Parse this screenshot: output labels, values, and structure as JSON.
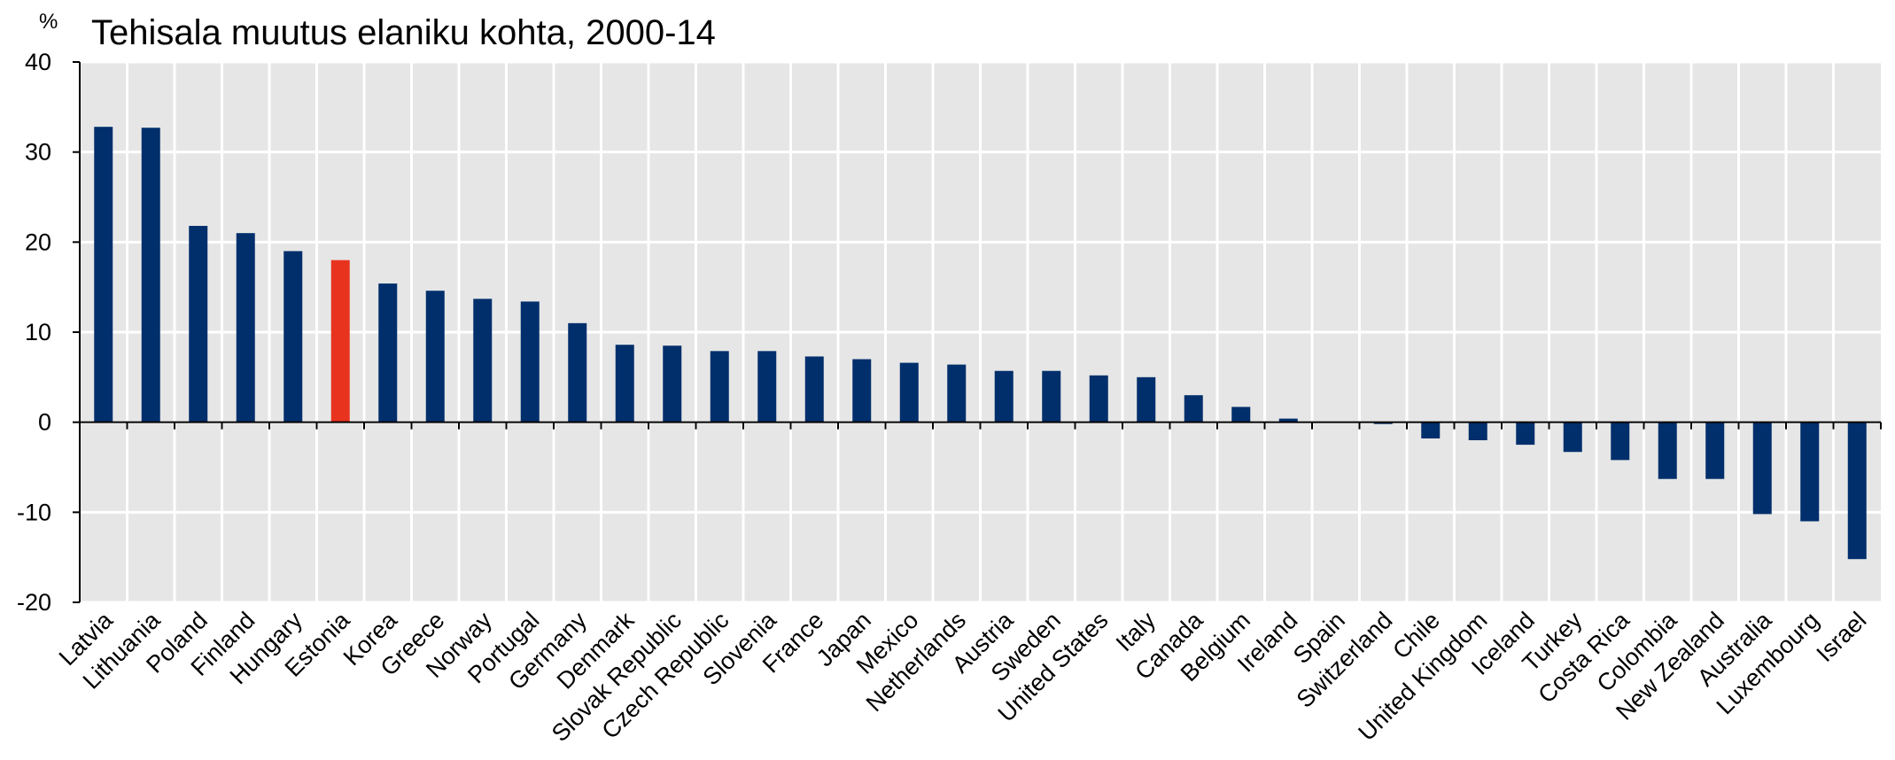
{
  "chart_data": {
    "type": "bar",
    "title": "Tehisala muutus elaniku kohta, 2000-14",
    "unit_label": "%",
    "xlabel": "",
    "ylabel": "",
    "ylim": [
      -20,
      40
    ],
    "yticks": [
      {
        "value": 40,
        "label": "40"
      },
      {
        "value": 30,
        "label": "30"
      },
      {
        "value": 20,
        "label": "20"
      },
      {
        "value": 10,
        "label": "10"
      },
      {
        "value": 0,
        "label": "0"
      },
      {
        "value": -10,
        "label": "-10"
      },
      {
        "value": -20,
        "label": "-20"
      }
    ],
    "grid": true,
    "bar_color": "#002f6c",
    "highlight_color": "#e8331f",
    "highlight_category": "Estonia",
    "plot_background": "#e6e6e6",
    "categories": [
      "Latvia",
      "Lithuania",
      "Poland",
      "Finland",
      "Hungary",
      "Estonia",
      "Korea",
      "Greece",
      "Norway",
      "Portugal",
      "Germany",
      "Denmark",
      "Slovak Republic",
      "Czech Republic",
      "Slovenia",
      "France",
      "Japan",
      "Mexico",
      "Netherlands",
      "Austria",
      "Sweden",
      "United States",
      "Italy",
      "Canada",
      "Belgium",
      "Ireland",
      "Spain",
      "Switzerland",
      "Chile",
      "United Kingdom",
      "Iceland",
      "Turkey",
      "Costa Rica",
      "Colombia",
      "New Zealand",
      "Australia",
      "Luxembourg",
      "Israel"
    ],
    "values": [
      32.8,
      32.7,
      21.8,
      21.0,
      19.0,
      18.0,
      15.4,
      14.6,
      13.7,
      13.4,
      11.0,
      8.6,
      8.5,
      7.9,
      7.9,
      7.3,
      7.0,
      6.6,
      6.4,
      5.7,
      5.7,
      5.2,
      5.0,
      3.0,
      1.7,
      0.4,
      0.0,
      -0.2,
      -1.8,
      -2.0,
      -2.5,
      -3.3,
      -4.2,
      -6.3,
      -6.3,
      -10.2,
      -11.0,
      -15.2
    ]
  }
}
